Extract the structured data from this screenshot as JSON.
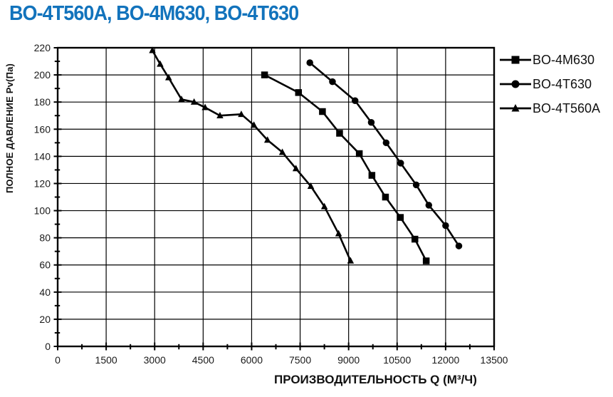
{
  "title": "BO-4T560A, BO-4M630, BO-4T630",
  "title_color": "#1273bc",
  "chart_data": {
    "type": "line",
    "title": "BO-4T560A, BO-4M630, BO-4T630",
    "xlabel": "ПРОИЗВОДИТЕЛЬНОСТЬ   Q  (М³/Ч)",
    "ylabel": "ПОЛНОЕ ДАВЛЕНИЕ  Pv(Па)",
    "xlim": [
      0,
      13500
    ],
    "ylim": [
      0,
      220
    ],
    "x_major_step": 1500,
    "x_minor_step": 750,
    "y_major_step": 20,
    "y_minor_step": 10,
    "x_tick_labels": [
      "0",
      "1500",
      "3000",
      "4500",
      "6000",
      "7500",
      "9000",
      "10500",
      "12000",
      "13500"
    ],
    "y_tick_labels": [
      "0",
      "20",
      "40",
      "60",
      "80",
      "100",
      "120",
      "140",
      "160",
      "180",
      "200",
      "220"
    ],
    "grid": true,
    "legend_position": "top-right",
    "line_color": "#000000",
    "series": [
      {
        "name": "BO-4M630",
        "marker": "square",
        "points": [
          [
            6400,
            200
          ],
          [
            7450,
            187
          ],
          [
            8190,
            173
          ],
          [
            8720,
            157
          ],
          [
            9330,
            142
          ],
          [
            9720,
            126
          ],
          [
            10140,
            110
          ],
          [
            10600,
            95
          ],
          [
            11050,
            79
          ],
          [
            11400,
            63
          ]
        ]
      },
      {
        "name": "BO-4T630",
        "marker": "circle",
        "points": [
          [
            7800,
            209
          ],
          [
            8500,
            195
          ],
          [
            9200,
            181
          ],
          [
            9700,
            165
          ],
          [
            10160,
            150
          ],
          [
            10610,
            135
          ],
          [
            11090,
            119
          ],
          [
            11480,
            104
          ],
          [
            12000,
            89
          ],
          [
            12410,
            74
          ]
        ]
      },
      {
        "name": "BO-4T560A",
        "marker": "triangle",
        "points": [
          [
            2930,
            218
          ],
          [
            3170,
            208
          ],
          [
            3430,
            198
          ],
          [
            3830,
            182
          ],
          [
            4220,
            180
          ],
          [
            4560,
            176
          ],
          [
            5020,
            170
          ],
          [
            5680,
            171
          ],
          [
            6070,
            163
          ],
          [
            6490,
            152
          ],
          [
            6950,
            143
          ],
          [
            7370,
            131
          ],
          [
            7830,
            118
          ],
          [
            8250,
            103
          ],
          [
            8690,
            83
          ],
          [
            9060,
            63
          ]
        ]
      }
    ]
  }
}
